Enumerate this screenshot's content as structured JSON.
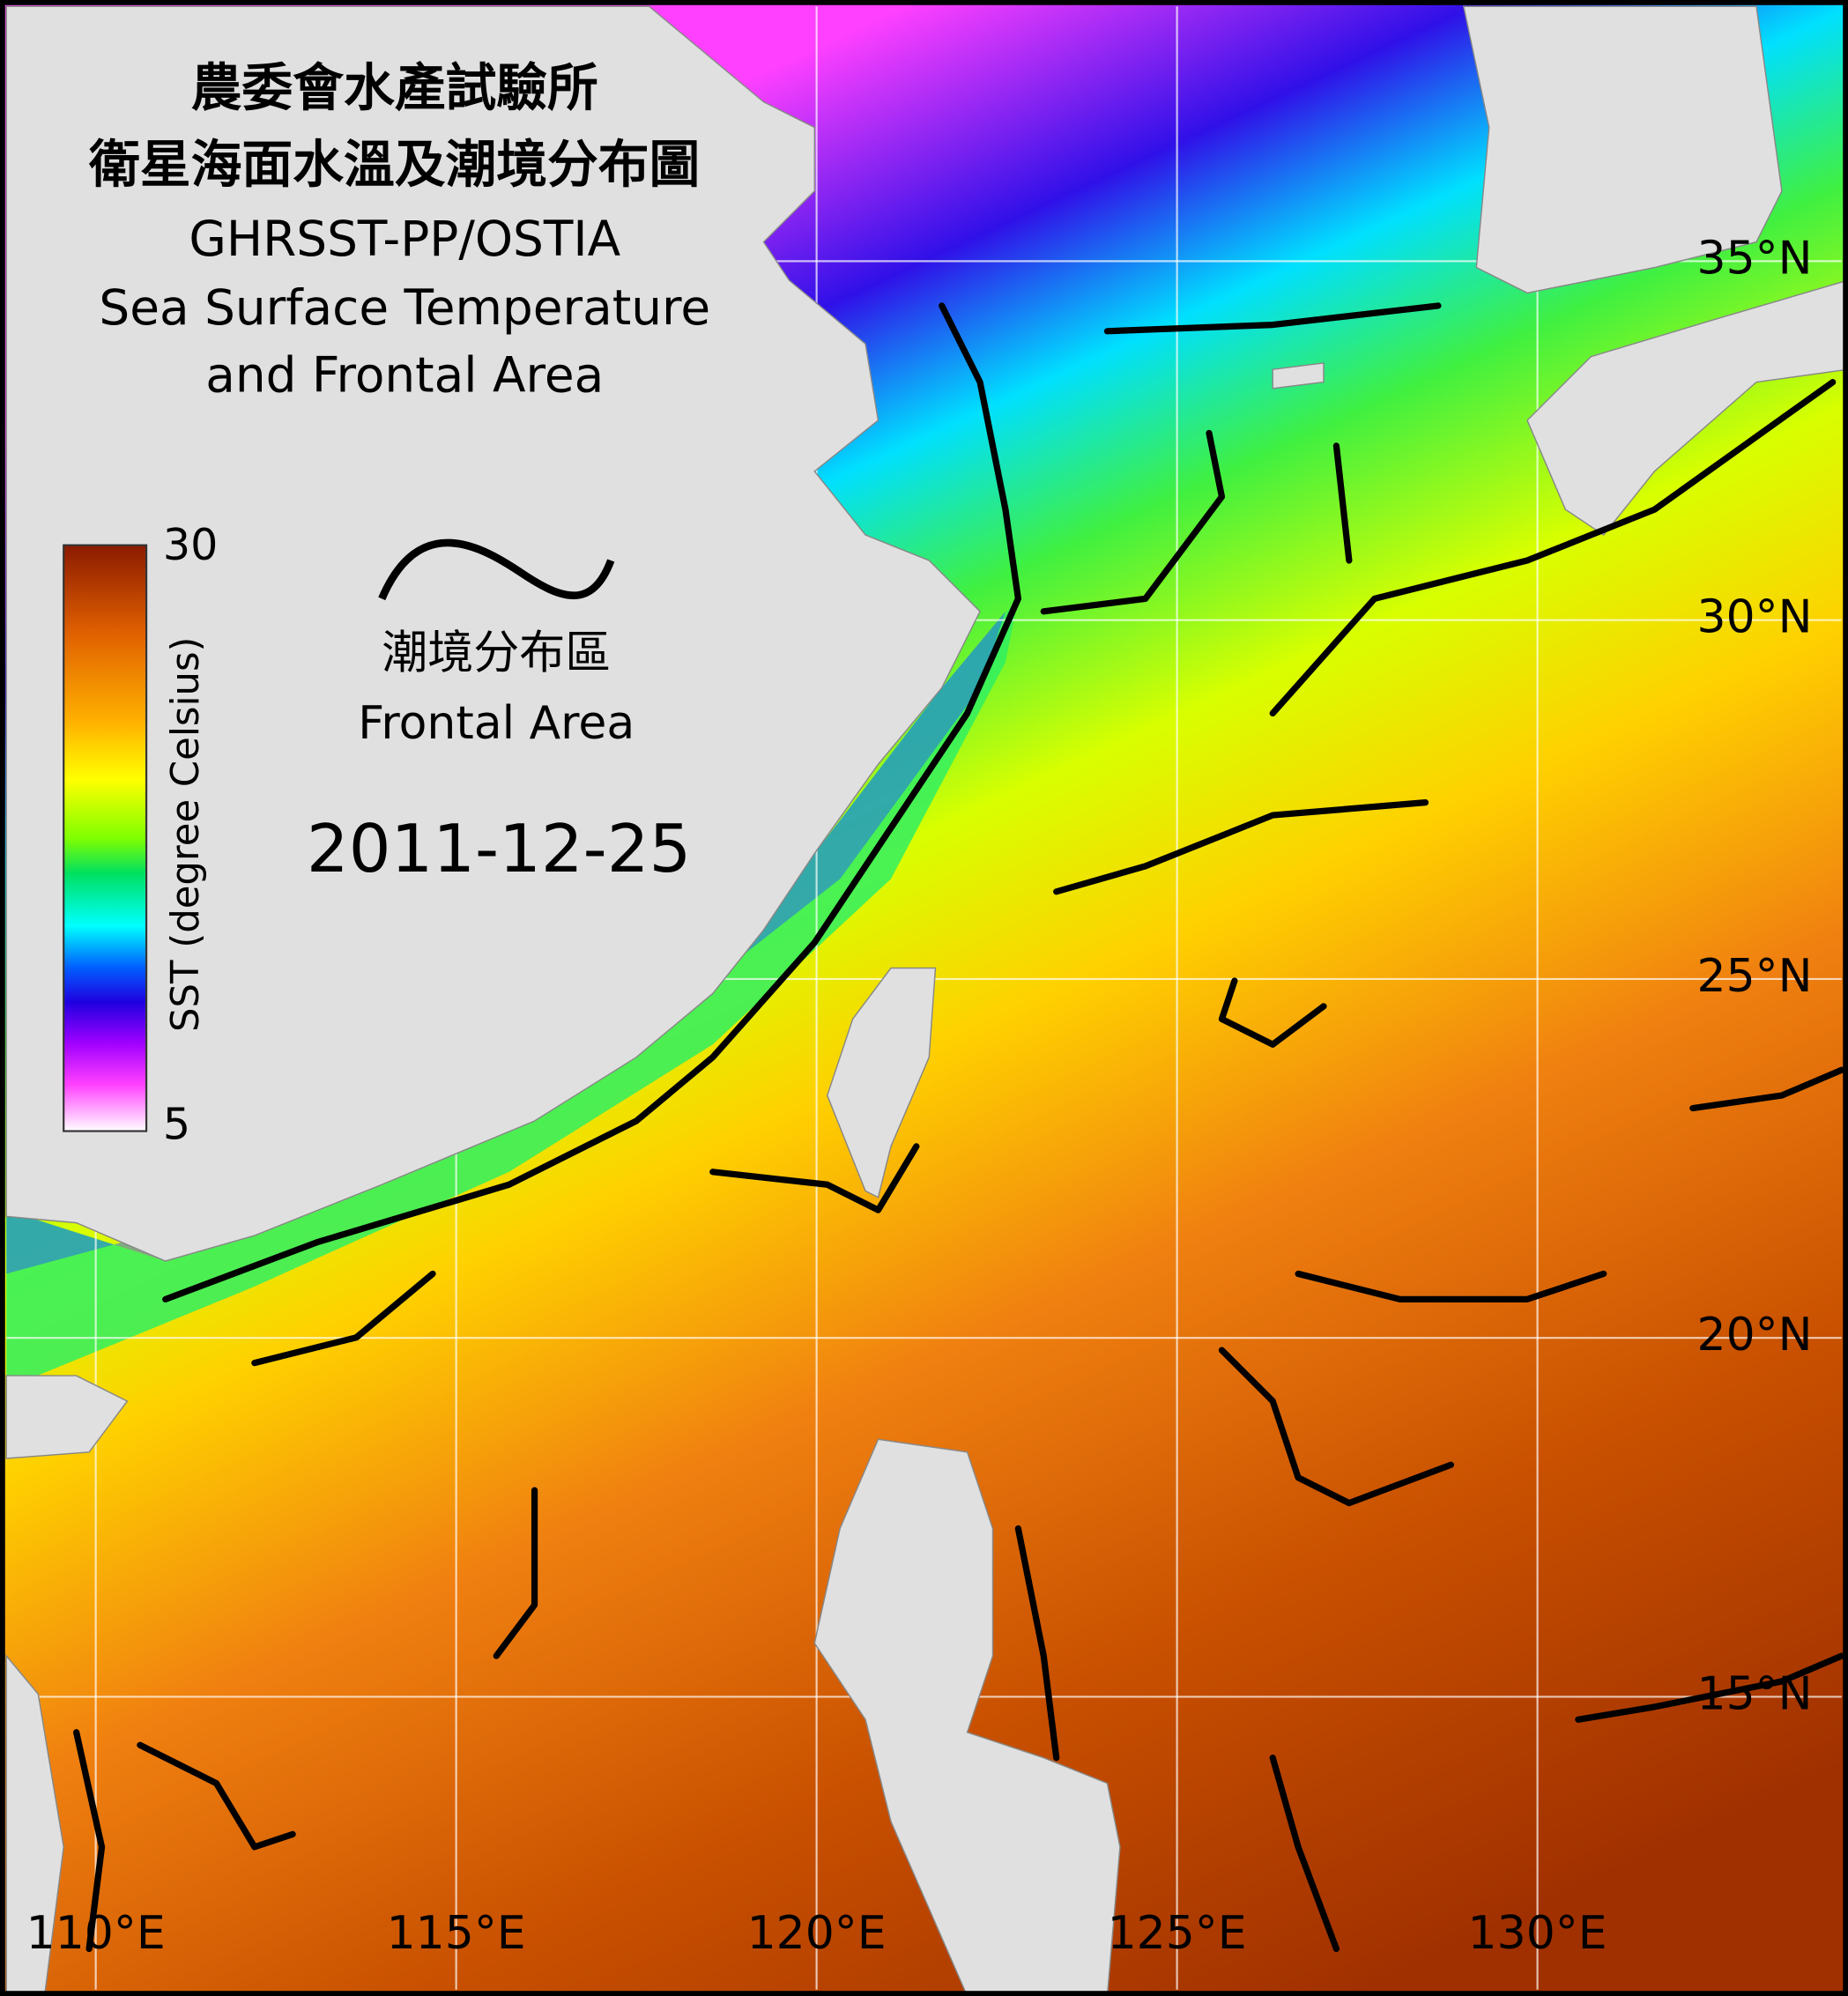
{
  "header": {
    "title_zh": "農委會水產試驗所",
    "subtitle_zh": "衛星海面水溫及潮境分布圖",
    "source": "GHRSST-PP/OSTIA",
    "title_en_1": "Sea Surface Temperature",
    "title_en_2": "and Frontal Area"
  },
  "colorbar": {
    "label": "SST (degree Celsius)",
    "range": [
      5,
      30
    ],
    "ticks": [
      5,
      30
    ]
  },
  "legend": {
    "label_zh": "潮境分布區",
    "label_en": "Frontal Area"
  },
  "date": "2011-12-25",
  "map": {
    "lonlim": [
      108.76,
      134.22
    ],
    "latlim": [
      38.55,
      10.92
    ],
    "lonticks": [
      {
        "value": 110,
        "label": "110°E"
      },
      {
        "value": 115,
        "label": "115°E"
      },
      {
        "value": 120,
        "label": "120°E"
      },
      {
        "value": 125,
        "label": "125°E"
      },
      {
        "value": 130,
        "label": "130°E"
      }
    ],
    "latticks": [
      {
        "value": 35,
        "label": "35°N"
      },
      {
        "value": 30,
        "label": "30°N"
      },
      {
        "value": 25,
        "label": "25°N"
      },
      {
        "value": 20,
        "label": "20°N"
      },
      {
        "value": 15,
        "label": "15°N"
      }
    ],
    "grid": true
  }
}
